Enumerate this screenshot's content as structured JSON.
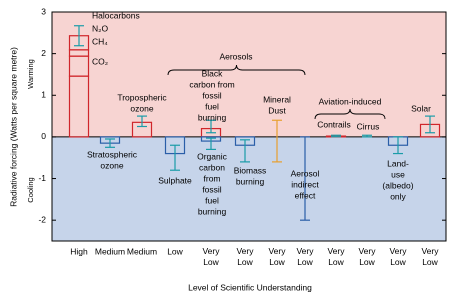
{
  "chart_data": {
    "type": "bar",
    "ylabel": "Radiative forcing (Watts per square metre)",
    "xlabel": "Level of Scientific Understanding",
    "warming_label": "Warming",
    "cooling_label": "Cooling",
    "groups": [
      "Aerosols",
      "Aviation-induced"
    ],
    "categories": [
      "High",
      "Medium",
      "Medium",
      "Low",
      "Very Low",
      "Very Low",
      "Very Low",
      "Very Low",
      "Very Low",
      "Very Low",
      "Very Low",
      "Very Low"
    ],
    "ylim": [
      -2.5,
      3
    ],
    "yticks": [
      -2,
      -1,
      0,
      1,
      2,
      3
    ],
    "background": {
      "warming": "#f7d4d2",
      "cooling": "#c6d4ea"
    },
    "colors": {
      "warming": "#d0262b",
      "cooling": "#2a5ea8",
      "error": "#1a9ca8"
    },
    "forcings": [
      {
        "col": 0,
        "segments": [
          {
            "name": "CO₂",
            "value": 1.46
          },
          {
            "name": "CH₄",
            "value": 0.48
          },
          {
            "name": "N₂O",
            "value": 0.15
          },
          {
            "name": "Halocarbons",
            "value": 0.34
          }
        ],
        "range": [
          2.19,
          2.67
        ]
      },
      {
        "col": 1,
        "label": [
          "Stratospheric",
          "ozone"
        ],
        "value": -0.15,
        "range": [
          -0.25,
          -0.05
        ]
      },
      {
        "col": 2,
        "label": [
          "Tropospheric",
          "ozone"
        ],
        "value": 0.35,
        "range": [
          0.25,
          0.5
        ]
      },
      {
        "col": 3,
        "label": [
          "Sulphate"
        ],
        "value": -0.4,
        "range": [
          -0.8,
          -0.2
        ]
      },
      {
        "col": 4,
        "label": [
          "Black",
          "carbon from",
          "fossil",
          "fuel",
          "burning"
        ],
        "value": 0.2,
        "range": [
          0.1,
          0.4
        ]
      },
      {
        "col": 4,
        "label": [
          "Organic",
          "carbon",
          "from",
          "fossil",
          "fuel",
          "burning"
        ],
        "value": -0.1,
        "range": [
          -0.3,
          -0.03
        ]
      },
      {
        "col": 5,
        "label": [
          "Biomass",
          "burning"
        ],
        "value": -0.2,
        "range": [
          -0.6,
          -0.07
        ]
      },
      {
        "col": 6,
        "label": [
          "Mineral",
          "Dust"
        ],
        "range": [
          -0.6,
          0.4
        ],
        "error_color": "#e8a030"
      },
      {
        "col": 7,
        "label": [
          "Aerosol",
          "indirect",
          "effect"
        ],
        "range": [
          -2,
          0
        ],
        "error_color": "#2a5ea8"
      },
      {
        "col": 8,
        "label": [
          "Contrails"
        ],
        "value": 0.02,
        "range": [
          0.005,
          0.04
        ]
      },
      {
        "col": 9,
        "label": [
          "Cirrus"
        ],
        "range": [
          0,
          0.04
        ]
      },
      {
        "col": 10,
        "label": [
          "Land-",
          "use",
          "(albedo)",
          "only"
        ],
        "value": -0.2,
        "range": [
          -0.4,
          0
        ]
      },
      {
        "col": 11,
        "label": [
          "Solar"
        ],
        "value": 0.3,
        "range": [
          0.1,
          0.5
        ]
      }
    ]
  }
}
